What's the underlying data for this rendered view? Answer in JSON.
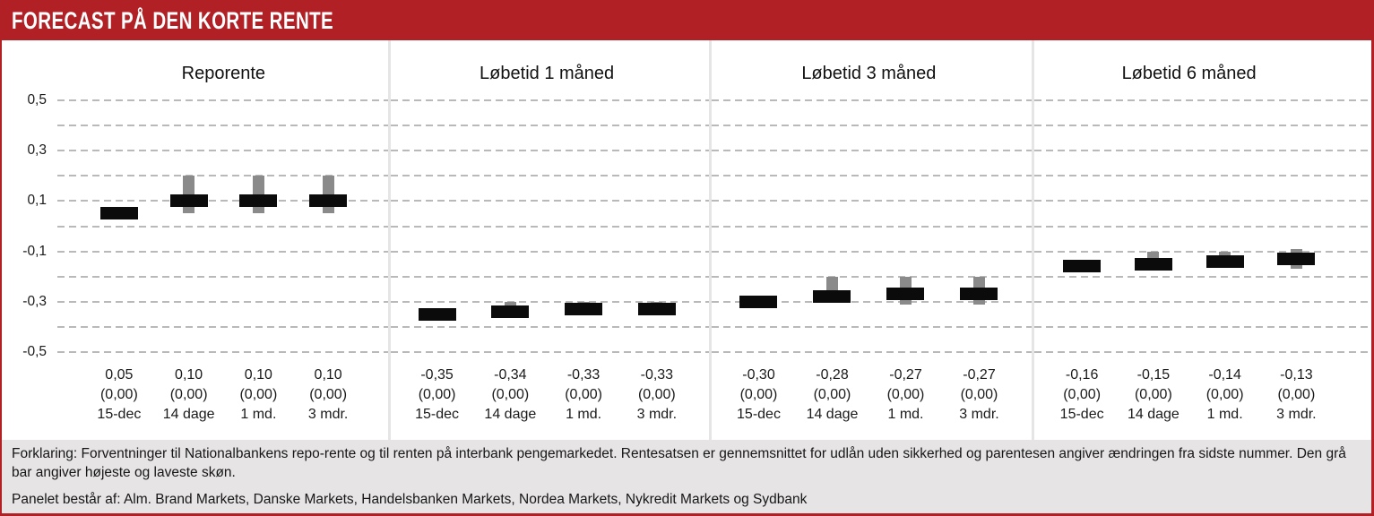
{
  "header": {
    "title": "FORECAST PÅ DEN KORTE RENTE"
  },
  "axis": {
    "ylim": [
      -0.5,
      0.5
    ],
    "grid_step": 0.1,
    "grid_on": true,
    "tick_values": [
      0.5,
      0.3,
      0.1,
      -0.1,
      -0.3,
      -0.5
    ],
    "tick_labels": [
      "0,5",
      "0,3",
      "0,1",
      "-0,1",
      "-0,3",
      "-0,5"
    ]
  },
  "chart_data": [
    {
      "type": "bar",
      "title": "Reporente",
      "categories": [
        "15-dec",
        "14 dage",
        "1 md.",
        "3 mdr."
      ],
      "values": [
        0.05,
        0.1,
        0.1,
        0.1
      ],
      "value_labels": [
        "0,05",
        "0,10",
        "0,10",
        "0,10"
      ],
      "change_labels": [
        "(0,00)",
        "(0,00)",
        "(0,00)",
        "(0,00)"
      ],
      "range_high": [
        null,
        0.2,
        0.2,
        0.2
      ],
      "range_low": [
        null,
        0.05,
        0.05,
        0.05
      ],
      "ylim": [
        -0.5,
        0.5
      ]
    },
    {
      "type": "bar",
      "title": "Løbetid 1 måned",
      "categories": [
        "15-dec",
        "14 dage",
        "1 md.",
        "3 mdr."
      ],
      "values": [
        -0.35,
        -0.34,
        -0.33,
        -0.33
      ],
      "value_labels": [
        "-0,35",
        "-0,34",
        "-0,33",
        "-0,33"
      ],
      "change_labels": [
        "(0,00)",
        "(0,00)",
        "(0,00)",
        "(0,00)"
      ],
      "range_high": [
        null,
        -0.3,
        -0.3,
        -0.3
      ],
      "range_low": [
        null,
        -0.36,
        -0.35,
        -0.35
      ],
      "ylim": [
        -0.5,
        0.5
      ]
    },
    {
      "type": "bar",
      "title": "Løbetid 3 måned",
      "categories": [
        "15-dec",
        "14 dage",
        "1 md.",
        "3 mdr."
      ],
      "values": [
        -0.3,
        -0.28,
        -0.27,
        -0.27
      ],
      "value_labels": [
        "-0,30",
        "-0,28",
        "-0,27",
        "-0,27"
      ],
      "change_labels": [
        "(0,00)",
        "(0,00)",
        "(0,00)",
        "(0,00)"
      ],
      "range_high": [
        null,
        -0.2,
        -0.2,
        -0.2
      ],
      "range_low": [
        null,
        -0.3,
        -0.31,
        -0.31
      ],
      "ylim": [
        -0.5,
        0.5
      ]
    },
    {
      "type": "bar",
      "title": "Løbetid 6 måned",
      "categories": [
        "15-dec",
        "14 dage",
        "1 md.",
        "3 mdr."
      ],
      "values": [
        -0.16,
        -0.15,
        -0.14,
        -0.13
      ],
      "value_labels": [
        "-0,16",
        "-0,15",
        "-0,14",
        "-0,13"
      ],
      "change_labels": [
        "(0,00)",
        "(0,00)",
        "(0,00)",
        "(0,00)"
      ],
      "range_high": [
        null,
        -0.1,
        -0.1,
        -0.09
      ],
      "range_low": [
        null,
        -0.17,
        -0.16,
        -0.17
      ],
      "ylim": [
        -0.5,
        0.5
      ]
    }
  ],
  "footer": {
    "explanation": "Forklaring: Forventninger til Nationalbankens repo-rente og til renten på interbank pengemarkedet. Rentesatsen er gennemsnittet for udlån uden sikkerhed og parentesen angiver ændringen fra sidste nummer. Den grå bar angiver højeste og laveste skøn.",
    "panel_note": "Panelet består af: Alm. Brand Markets, Danske Markets, Handelsbanken Markets, Nordea Markets, Nykredit Markets og Sydbank"
  },
  "colors": {
    "header_red": "#b12025",
    "estimate_bar": "#0b0b0b",
    "range_bar": "#8a8a8a",
    "footer_bg": "#e6e4e5",
    "gridline": "#b9b9b9",
    "panel_divider": "#e6e5e6"
  }
}
